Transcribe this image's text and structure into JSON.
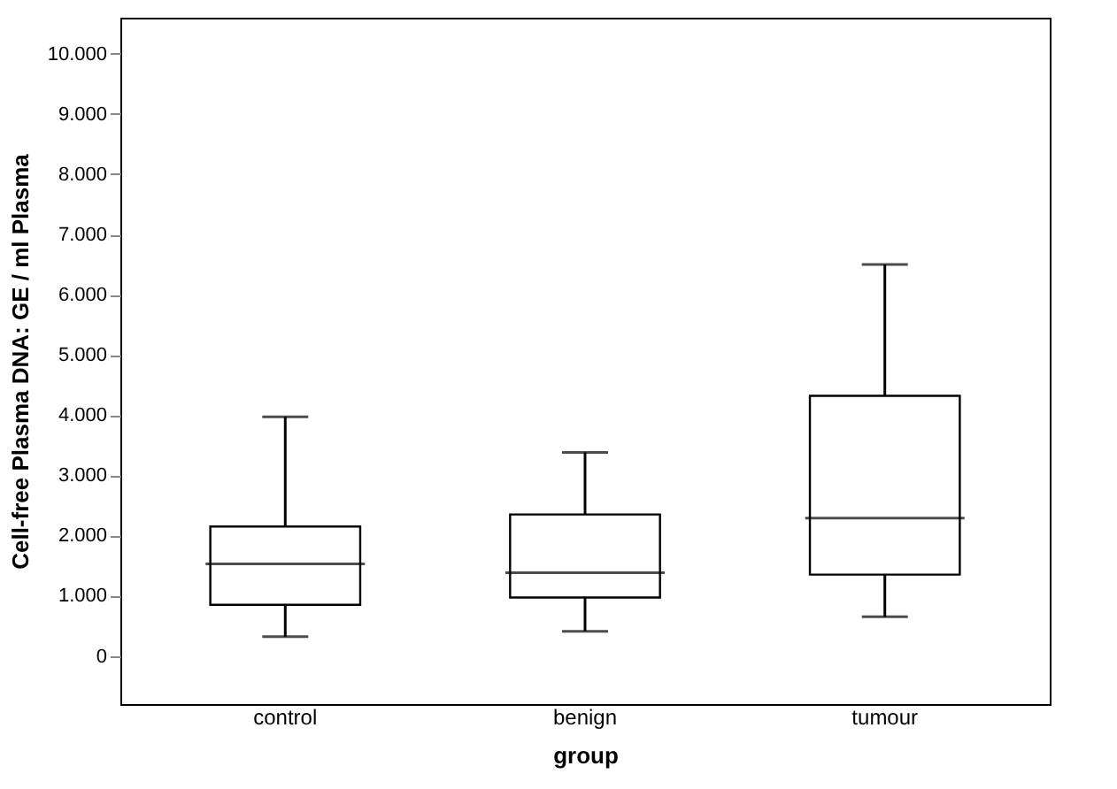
{
  "chart_data": {
    "type": "box",
    "xlabel": "group",
    "ylabel": "Cell-free Plasma DNA: GE / ml Plasma",
    "categories": [
      "control",
      "benign",
      "tumour"
    ],
    "boxes": [
      {
        "low": 320,
        "q1": 850,
        "median": 1530,
        "q3": 2150,
        "high": 3970
      },
      {
        "low": 410,
        "q1": 970,
        "median": 1380,
        "q3": 2350,
        "high": 3380
      },
      {
        "low": 650,
        "q1": 1350,
        "median": 2290,
        "q3": 4320,
        "high": 6500
      }
    ],
    "ylim": [
      -800,
      10600
    ],
    "yticks": [
      0,
      {
        "value": 1000,
        "label": "1.000"
      },
      {
        "value": 2000,
        "label": "2.000"
      },
      {
        "value": 3000,
        "label": "3.000"
      },
      {
        "value": 4000,
        "label": "4.000"
      },
      {
        "value": 5000,
        "label": "5.000"
      },
      {
        "value": 6000,
        "label": "6.000"
      },
      {
        "value": 7000,
        "label": "7.000"
      },
      {
        "value": 8000,
        "label": "8.000"
      },
      {
        "value": 9000,
        "label": "9.000"
      },
      {
        "value": 10000,
        "label": "10.000"
      }
    ],
    "grid": false
  }
}
